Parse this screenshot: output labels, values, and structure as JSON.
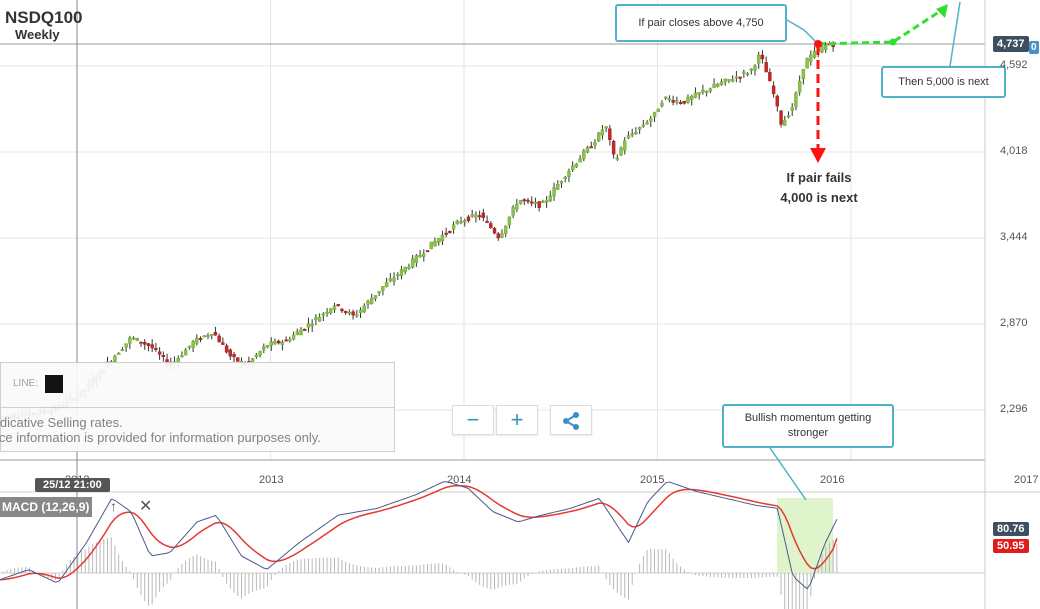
{
  "header": {
    "title": "NSDQ100",
    "subtitle": "Weekly"
  },
  "colors": {
    "up": "#8bc34a",
    "down": "#c62828",
    "grid": "#e6e6e6",
    "macd": "#4a5a8c",
    "signal": "#e53935",
    "callout_border": "#4fb2c6",
    "arrow_green": "#33dd33",
    "arrow_red": "#ff1111"
  },
  "annotations": {
    "closes_above": "If pair closes above 4,750",
    "then_5000": "Then 5,000 is next",
    "fails_line1": "If pair fails",
    "fails_line2": "4,000 is next",
    "bullish": "Bullish momentum getting stronger"
  },
  "price_tags": {
    "current": "4,737",
    "right_edge": "0"
  },
  "legend": {
    "line_label": "LINE:",
    "disclaimer1": "Indicative Selling rates.",
    "disclaimer2": "Price information is provided for information purposes only."
  },
  "toolbar": {
    "zoom_out": "−",
    "zoom_in": "+",
    "share_icon": "share-icon"
  },
  "crosshair": {
    "date": "25/12 21:00"
  },
  "macd": {
    "label": "MACD (12,26,9)",
    "value_macd": "80.76",
    "value_signal": "50.95"
  },
  "chart_data": {
    "type": "candlestick",
    "y_ticks": [
      "4,592",
      "4,018",
      "3,444",
      "2,870",
      "2,296"
    ],
    "y_tick_values": [
      4592,
      4018,
      3444,
      2870,
      2296
    ],
    "ylim": [
      2000,
      4850
    ],
    "x_ticks": [
      "2012",
      "2013",
      "2014",
      "2015",
      "2016",
      "2017"
    ],
    "x_range_years": [
      2011.6,
      2017.0
    ],
    "anchors": [
      [
        2011.65,
        2250
      ],
      [
        2011.9,
        2300
      ],
      [
        2012.05,
        2420
      ],
      [
        2012.2,
        2640
      ],
      [
        2012.3,
        2780
      ],
      [
        2012.4,
        2720
      ],
      [
        2012.5,
        2590
      ],
      [
        2012.62,
        2750
      ],
      [
        2012.72,
        2820
      ],
      [
        2012.82,
        2640
      ],
      [
        2012.9,
        2600
      ],
      [
        2013.0,
        2730
      ],
      [
        2013.1,
        2760
      ],
      [
        2013.25,
        2900
      ],
      [
        2013.35,
        3000
      ],
      [
        2013.45,
        2920
      ],
      [
        2013.6,
        3120
      ],
      [
        2013.72,
        3250
      ],
      [
        2013.85,
        3400
      ],
      [
        2014.0,
        3560
      ],
      [
        2014.1,
        3600
      ],
      [
        2014.2,
        3450
      ],
      [
        2014.3,
        3700
      ],
      [
        2014.42,
        3660
      ],
      [
        2014.55,
        3880
      ],
      [
        2014.7,
        4100
      ],
      [
        2014.75,
        4200
      ],
      [
        2014.8,
        3950
      ],
      [
        2014.85,
        4100
      ],
      [
        2015.0,
        4260
      ],
      [
        2015.05,
        4380
      ],
      [
        2015.15,
        4350
      ],
      [
        2015.25,
        4420
      ],
      [
        2015.35,
        4480
      ],
      [
        2015.5,
        4560
      ],
      [
        2015.55,
        4670
      ],
      [
        2015.62,
        4400
      ],
      [
        2015.66,
        4200
      ],
      [
        2015.72,
        4330
      ],
      [
        2015.78,
        4620
      ],
      [
        2015.85,
        4700
      ],
      [
        2015.9,
        4737
      ]
    ],
    "macd_anchors": [
      [
        2011.6,
        -10
      ],
      [
        2011.75,
        5
      ],
      [
        2011.9,
        -15
      ],
      [
        2012.05,
        45
      ],
      [
        2012.18,
        110
      ],
      [
        2012.28,
        90
      ],
      [
        2012.38,
        25
      ],
      [
        2012.48,
        30
      ],
      [
        2012.62,
        75
      ],
      [
        2012.72,
        85
      ],
      [
        2012.85,
        25
      ],
      [
        2012.98,
        5
      ],
      [
        2013.15,
        45
      ],
      [
        2013.35,
        85
      ],
      [
        2013.55,
        95
      ],
      [
        2013.75,
        115
      ],
      [
        2013.9,
        135
      ],
      [
        2014.02,
        125
      ],
      [
        2014.15,
        90
      ],
      [
        2014.28,
        75
      ],
      [
        2014.4,
        85
      ],
      [
        2014.55,
        95
      ],
      [
        2014.7,
        110
      ],
      [
        2014.78,
        75
      ],
      [
        2014.85,
        45
      ],
      [
        2014.95,
        105
      ],
      [
        2015.05,
        135
      ],
      [
        2015.2,
        120
      ],
      [
        2015.35,
        110
      ],
      [
        2015.5,
        100
      ],
      [
        2015.62,
        95
      ],
      [
        2015.7,
        -5
      ],
      [
        2015.78,
        -25
      ],
      [
        2015.86,
        40
      ],
      [
        2015.93,
        80.76
      ]
    ],
    "macd_ylim": [
      -60,
      160
    ],
    "signal_value": 50.95
  }
}
